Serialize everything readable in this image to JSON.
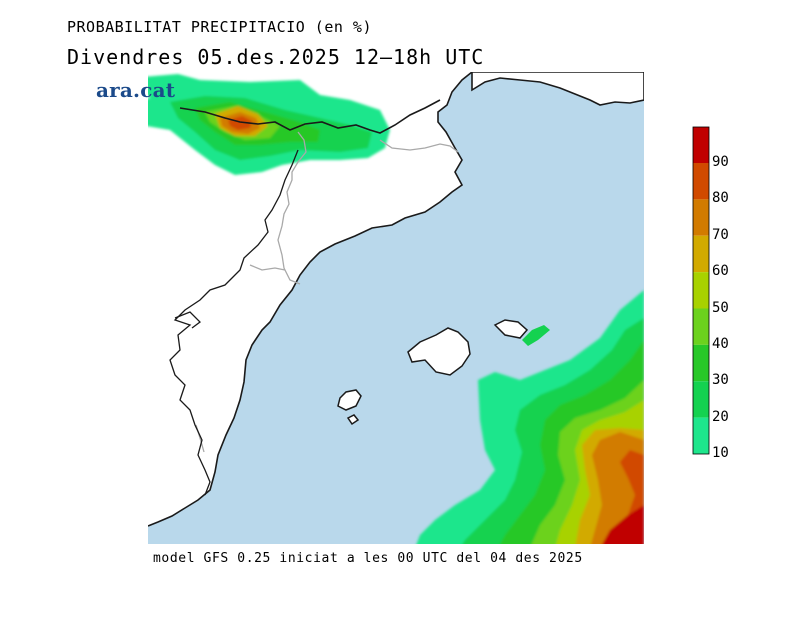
{
  "header": {
    "title": "PROBABILITAT PRECIPITACIO (en %)",
    "subtitle": "Divendres  05.des.2025 12–18h UTC",
    "logo": "ara.cat"
  },
  "footer": {
    "text": "model GFS 0.25 iniciat a les 00 UTC del 04 des 2025"
  },
  "colorbar": {
    "labels": [
      "90",
      "80",
      "70",
      "60",
      "50",
      "40",
      "30",
      "20",
      "10"
    ],
    "colors": [
      "#c00000",
      "#d14a00",
      "#d27b00",
      "#d2aa00",
      "#a8d200",
      "#6cd21e",
      "#28c828",
      "#14d250",
      "#1ee68c"
    ]
  },
  "colors": {
    "sea": "#b9d8eb",
    "land": "#ffffff",
    "coast": "#1a1a1a",
    "borders": "#a9a9a9"
  }
}
